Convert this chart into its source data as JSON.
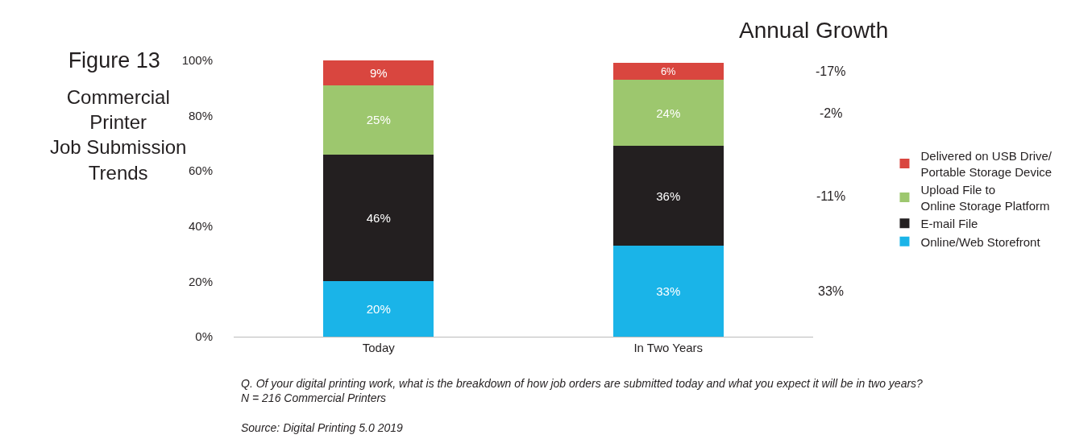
{
  "chart_data": {
    "type": "bar",
    "stacked": true,
    "title": "Figure 13",
    "subtitle": "Commercial\nPrinter\nJob Submission\nTrends",
    "categories": [
      "Today",
      "In Two Years"
    ],
    "series": [
      {
        "name": "Online/Web Storefront",
        "color": "#1ab4e8",
        "values": [
          20,
          33
        ],
        "value_labels": [
          "20%",
          "33%"
        ]
      },
      {
        "name": "E-mail File",
        "color": "#231f20",
        "values": [
          46,
          36
        ],
        "value_labels": [
          "46%",
          "36%"
        ]
      },
      {
        "name": "Upload File to\nOnline Storage Platform",
        "color": "#9dc76e",
        "values": [
          25,
          24
        ],
        "value_labels": [
          "25%",
          "24%"
        ]
      },
      {
        "name": "Delivered on USB Drive/\nPortable Storage Device",
        "color": "#d9463f",
        "values": [
          9,
          6
        ],
        "value_labels": [
          "9%",
          "6%"
        ]
      }
    ],
    "ylim": [
      0,
      100
    ],
    "yticks": [
      {
        "value": 0,
        "label": "0%"
      },
      {
        "value": 20,
        "label": "20%"
      },
      {
        "value": 40,
        "label": "40%"
      },
      {
        "value": 60,
        "label": "60%"
      },
      {
        "value": 80,
        "label": "80%"
      },
      {
        "value": 100,
        "label": "100%"
      }
    ],
    "legend": "right",
    "annotations": [
      "Annual Growth",
      "33%",
      "-11%",
      "-2%",
      "-17%",
      "Q. Of your digital printing work, what is the breakdown of how job orders are submitted today and what you expect it will be in two years?\nN = 216 Commercial Printers",
      "Source: Digital Printing 5.0 2019"
    ]
  }
}
